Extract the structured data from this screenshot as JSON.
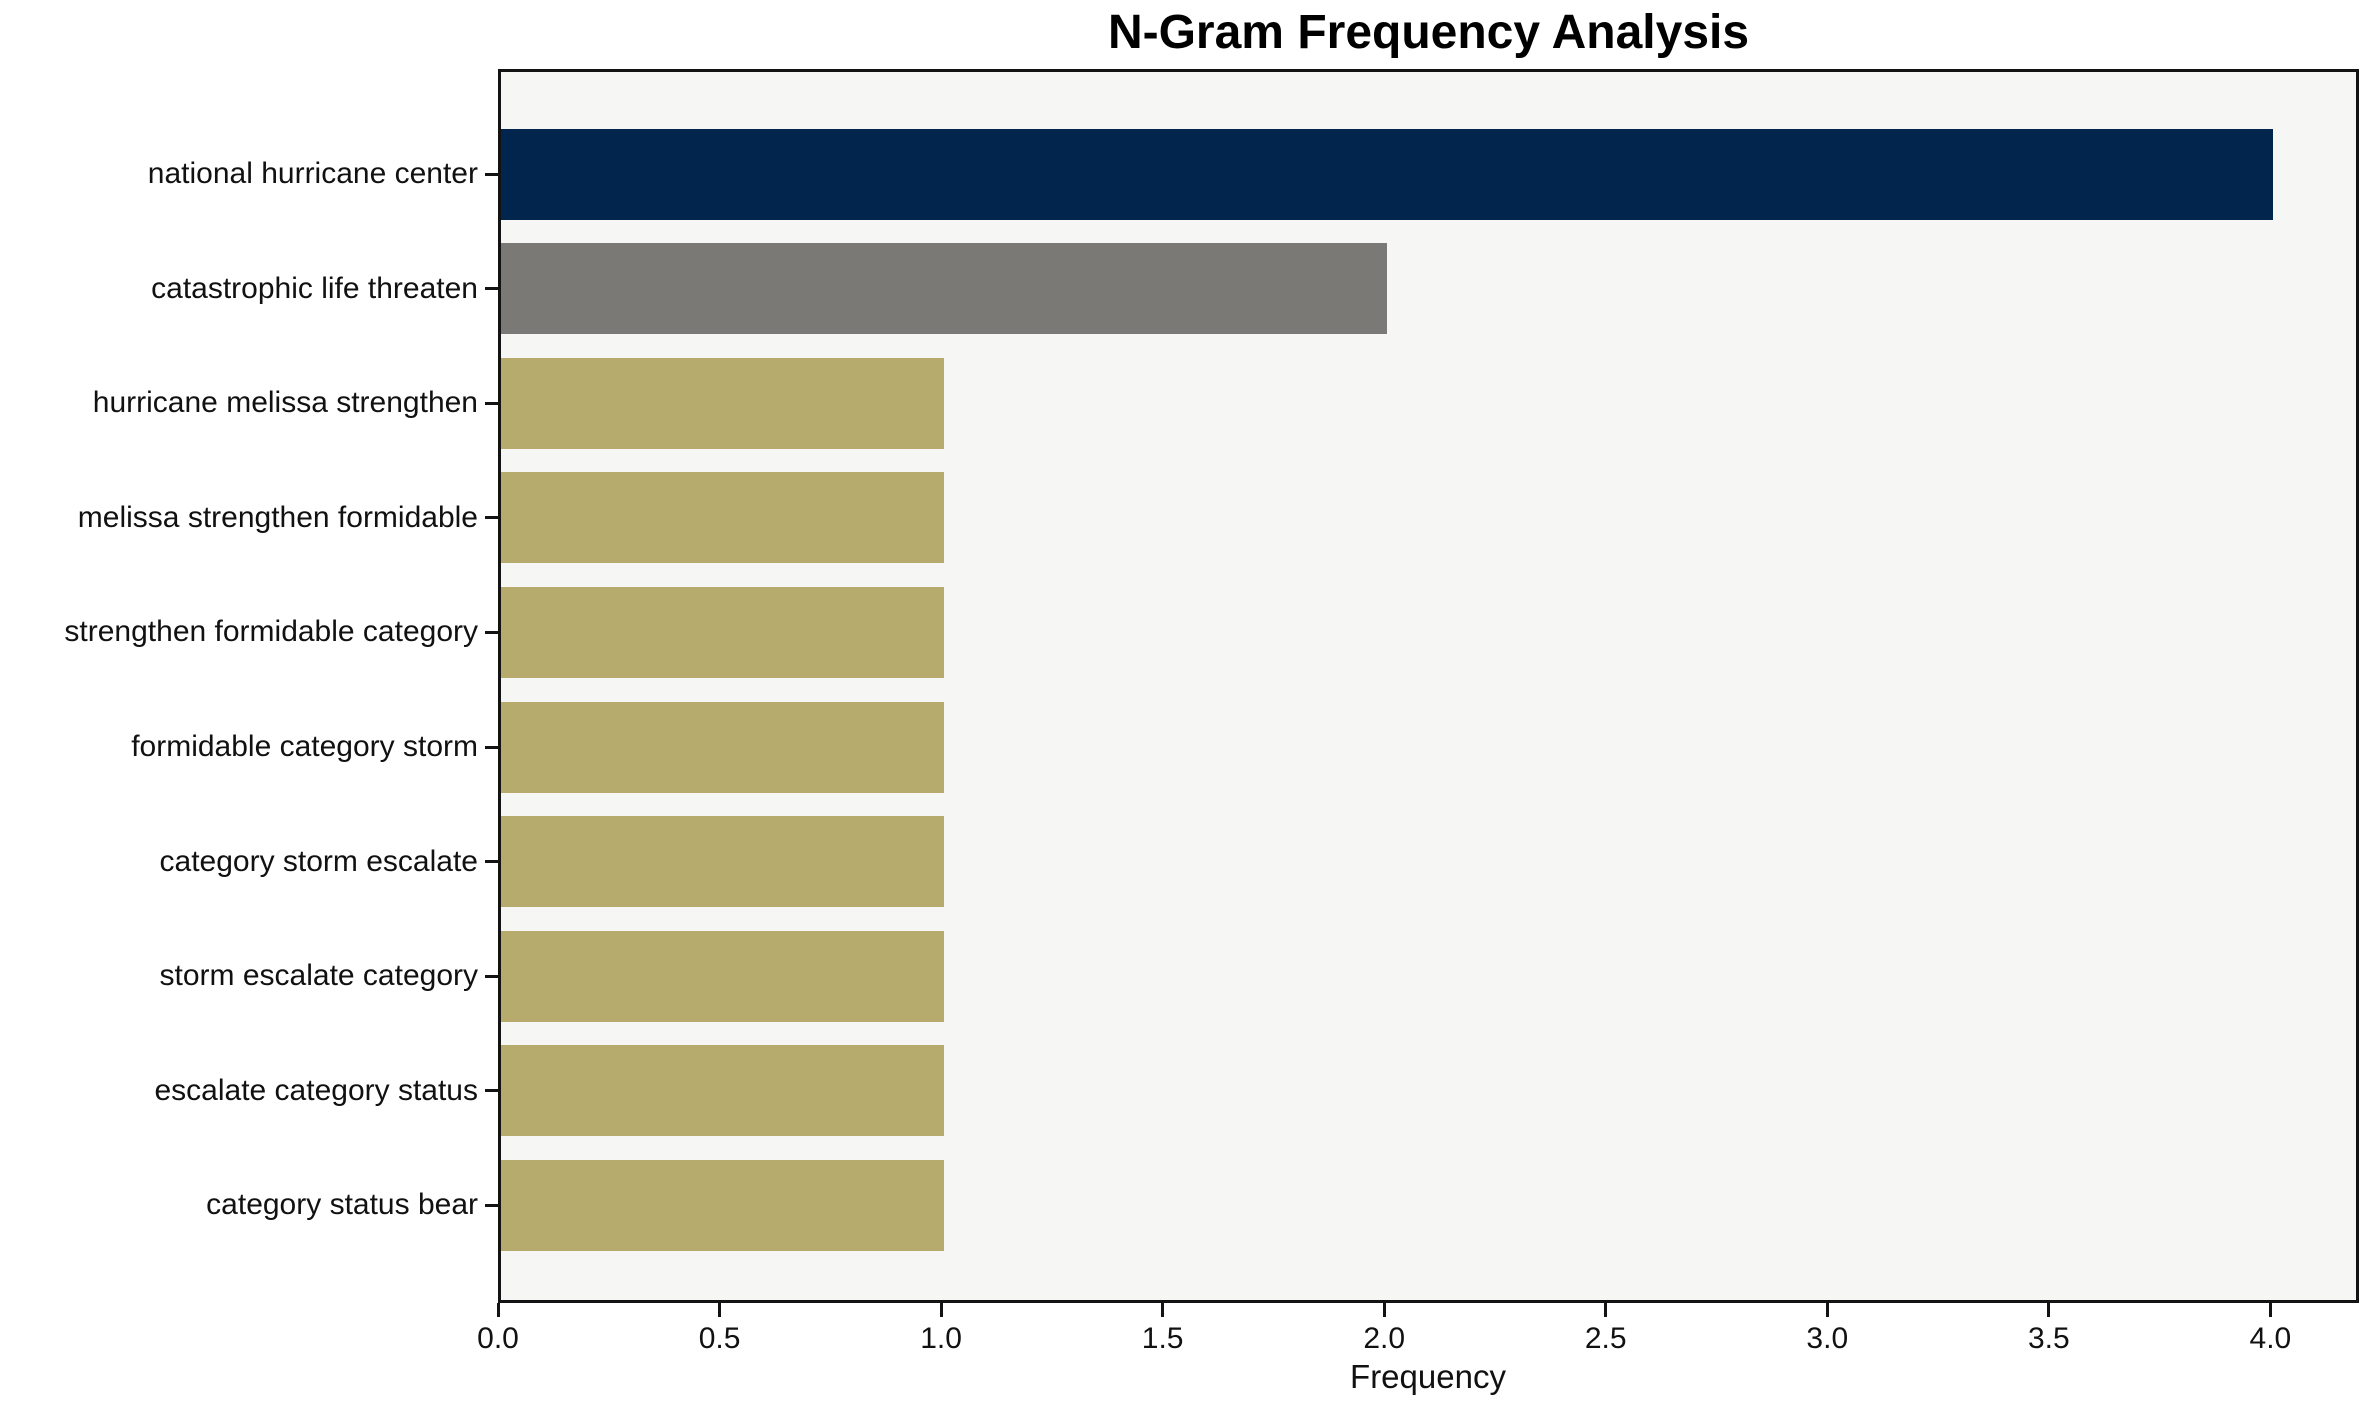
{
  "chart": {
    "title": "N-Gram Frequency Analysis",
    "xlabel": "Frequency"
  },
  "chart_data": {
    "type": "bar",
    "orientation": "horizontal",
    "title": "N-Gram Frequency Analysis",
    "xlabel": "Frequency",
    "ylabel": "",
    "categories": [
      "national hurricane center",
      "catastrophic life threaten",
      "hurricane melissa strengthen",
      "melissa strengthen formidable",
      "strengthen formidable category",
      "formidable category storm",
      "category storm escalate",
      "storm escalate category",
      "escalate category status",
      "category status bear"
    ],
    "values": [
      4,
      2,
      1,
      1,
      1,
      1,
      1,
      1,
      1,
      1
    ],
    "bar_colors": [
      "#02254e",
      "#7b7975",
      "#b6ab6c",
      "#b6ab6c",
      "#b6ab6c",
      "#b6ab6c",
      "#b6ab6c",
      "#b6ab6c",
      "#b6ab6c",
      "#b6ab6c"
    ],
    "xlim": [
      0,
      4.2
    ],
    "xticks": [
      0.0,
      0.5,
      1.0,
      1.5,
      2.0,
      2.5,
      3.0,
      3.5,
      4.0
    ],
    "xtick_labels": [
      "0.0",
      "0.5",
      "1.0",
      "1.5",
      "2.0",
      "2.5",
      "3.0",
      "3.5",
      "4.0"
    ],
    "grid": false,
    "legend": false,
    "colors": {
      "plot_background": "#f6f6f4",
      "figure_background": "#ffffff",
      "spine": "#131313",
      "text": "#111111",
      "bar_primary": "#02254e",
      "bar_secondary": "#7b7975",
      "bar_default": "#b6ab6c"
    }
  }
}
